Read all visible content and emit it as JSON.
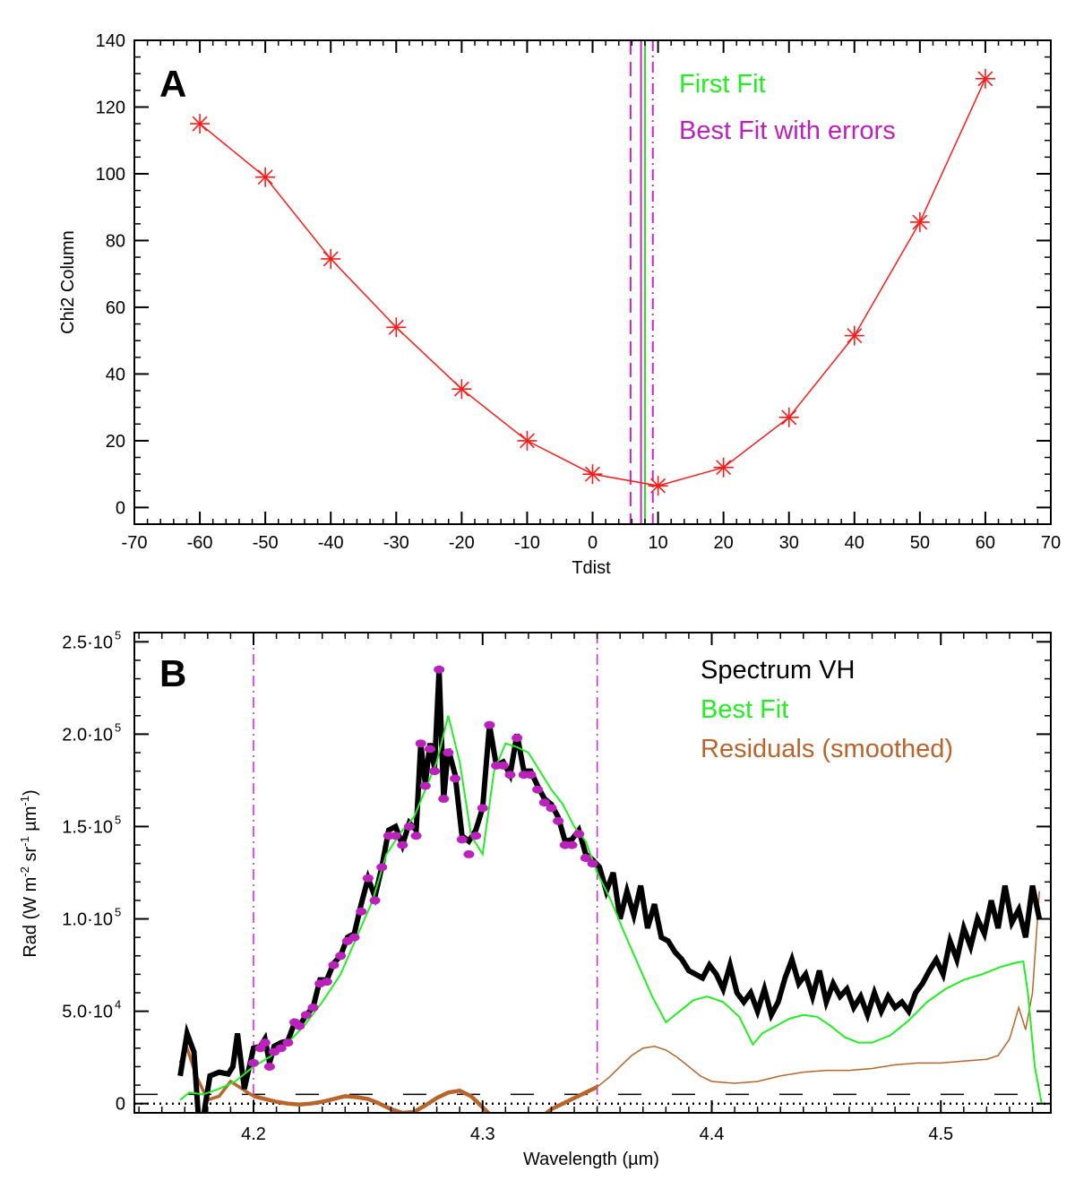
{
  "chart_data": [
    {
      "type": "line",
      "panel_label": "A",
      "xlabel": "Tdist",
      "ylabel": "Chi2 Column",
      "xlim": [
        -70,
        70
      ],
      "ylim": [
        -5,
        140
      ],
      "xticks": [
        -70,
        -60,
        -50,
        -40,
        -30,
        -20,
        -10,
        0,
        10,
        20,
        30,
        40,
        50,
        60,
        70
      ],
      "yticks": [
        0,
        20,
        40,
        60,
        80,
        100,
        120,
        140
      ],
      "series": [
        {
          "color": "#ff1a1a",
          "marker": "asterisk",
          "x": [
            -60,
            -50,
            -40,
            -30,
            -20,
            -10,
            0,
            10,
            20,
            30,
            40,
            50,
            60
          ],
          "y": [
            115,
            99,
            74.5,
            54,
            35.5,
            20,
            10,
            6.5,
            12,
            27,
            51.5,
            85.5,
            128.5
          ]
        }
      ],
      "vlines": [
        {
          "x": 8.0,
          "style": "solid",
          "color": "#22dd22"
        },
        {
          "x": 5.8,
          "style": "dashed",
          "color": "#cc22cc"
        },
        {
          "x": 7.4,
          "style": "solid",
          "color": "#cc22cc"
        },
        {
          "x": 9.2,
          "style": "dashdot",
          "color": "#cc22cc"
        }
      ],
      "legend": [
        {
          "label": "First Fit",
          "color": "#22ee22"
        },
        {
          "label": "Best Fit with errors",
          "color": "#bb22bb"
        }
      ],
      "legend_placement": "top-right",
      "grid": false
    },
    {
      "type": "line",
      "panel_label": "B",
      "xlabel": "Wavelength (µm)",
      "ylabel_parts": [
        "Rad (W m",
        "-2",
        " sr",
        "-1",
        " µm",
        "-1",
        ")"
      ],
      "xlim": [
        4.148,
        4.548
      ],
      "ylim": [
        -5000,
        255000
      ],
      "xticks": [
        4.2,
        4.3,
        4.4,
        4.5
      ],
      "xtick_labels": [
        "4.2",
        "4.3",
        "4.4",
        "4.5"
      ],
      "yticks": [
        0,
        50000,
        100000,
        150000,
        200000,
        250000
      ],
      "ytick_labels": [
        {
          "mant": "0",
          "exp": ""
        },
        {
          "mant": "5.0·10",
          "exp": "4"
        },
        {
          "mant": "1.0·10",
          "exp": "5"
        },
        {
          "mant": "1.5·10",
          "exp": "5"
        },
        {
          "mant": "2.0·10",
          "exp": "5"
        },
        {
          "mant": "2.5·10",
          "exp": "5"
        }
      ],
      "vlines": [
        {
          "x": 4.2,
          "style": "dashdot",
          "color": "#cc22cc"
        },
        {
          "x": 4.35,
          "style": "dashdot",
          "color": "#cc22cc"
        }
      ],
      "hlines": [
        {
          "y": 5000,
          "style": "longdash",
          "color": "#000000"
        },
        {
          "y": 0,
          "style": "dotted",
          "color": "#000000"
        }
      ],
      "series": [
        {
          "name": "Spectrum VH",
          "color": "#000000",
          "width": 6,
          "x": [
            4.168,
            4.171,
            4.174,
            4.176,
            4.178,
            4.181,
            4.185,
            4.189,
            4.191,
            4.193,
            4.196,
            4.2,
            4.203,
            4.205,
            4.207,
            4.209,
            4.212,
            4.215,
            4.218,
            4.22,
            4.223,
            4.226,
            4.229,
            4.232,
            4.235,
            4.238,
            4.241,
            4.244,
            4.247,
            4.25,
            4.253,
            4.256,
            4.259,
            4.262,
            4.265,
            4.268,
            4.271,
            4.273,
            4.275,
            4.277,
            4.279,
            4.281,
            4.283,
            4.285,
            4.288,
            4.291,
            4.294,
            4.297,
            4.3,
            4.303,
            4.306,
            4.309,
            4.312,
            4.315,
            4.318,
            4.321,
            4.324,
            4.327,
            4.33,
            4.333,
            4.336,
            4.339,
            4.342,
            4.345,
            4.348,
            4.351,
            4.354,
            4.357,
            4.36,
            4.363,
            4.366,
            4.369,
            4.372,
            4.375,
            4.378,
            4.381,
            4.384,
            4.387,
            4.39,
            4.393,
            4.396,
            4.399,
            4.402,
            4.405,
            4.408,
            4.411,
            4.414,
            4.417,
            4.42,
            4.423,
            4.426,
            4.429,
            4.432,
            4.435,
            4.438,
            4.441,
            4.444,
            4.447,
            4.45,
            4.453,
            4.456,
            4.459,
            4.462,
            4.465,
            4.468,
            4.471,
            4.474,
            4.477,
            4.48,
            4.483,
            4.486,
            4.489,
            4.492,
            4.495,
            4.498,
            4.501,
            4.504,
            4.507,
            4.51,
            4.513,
            4.516,
            4.519,
            4.522,
            4.525,
            4.528,
            4.531,
            4.534,
            4.537,
            4.54,
            4.543
          ],
          "y": [
            15000,
            38000,
            28000,
            -8000,
            -8000,
            15000,
            17000,
            16000,
            20000,
            38000,
            8000,
            30000,
            31000,
            35000,
            22000,
            31000,
            33000,
            34000,
            44000,
            42000,
            48000,
            52000,
            67000,
            67000,
            76000,
            80000,
            90000,
            92000,
            108000,
            122000,
            112000,
            128000,
            148000,
            150000,
            140000,
            152000,
            148000,
            195000,
            173000,
            195000,
            182000,
            235000,
            165000,
            192000,
            178000,
            145000,
            142000,
            148000,
            160000,
            205000,
            183000,
            185000,
            178000,
            200000,
            180000,
            180000,
            172000,
            165000,
            162000,
            155000,
            142000,
            143000,
            148000,
            135000,
            132000,
            128000,
            115000,
            125000,
            100000,
            115000,
            102000,
            118000,
            95000,
            108000,
            90000,
            88000,
            82000,
            78000,
            72000,
            70000,
            68000,
            75000,
            70000,
            62000,
            75000,
            60000,
            55000,
            60000,
            50000,
            62000,
            48000,
            55000,
            68000,
            78000,
            65000,
            70000,
            58000,
            72000,
            55000,
            65000,
            58000,
            62000,
            52000,
            58000,
            48000,
            60000,
            50000,
            58000,
            52000,
            55000,
            50000,
            60000,
            65000,
            72000,
            78000,
            70000,
            88000,
            78000,
            95000,
            85000,
            100000,
            92000,
            110000,
            95000,
            118000,
            98000,
            105000,
            90000,
            118000,
            100000
          ]
        },
        {
          "name": "Best Fit",
          "color": "#22ee22",
          "width": 2,
          "x": [
            4.168,
            4.172,
            4.178,
            4.185,
            4.192,
            4.2,
            4.208,
            4.215,
            4.222,
            4.23,
            4.238,
            4.245,
            4.252,
            4.258,
            4.265,
            4.27,
            4.275,
            4.28,
            4.285,
            4.29,
            4.295,
            4.3,
            4.305,
            4.31,
            4.315,
            4.32,
            4.325,
            4.33,
            4.335,
            4.34,
            4.345,
            4.35,
            4.356,
            4.362,
            4.368,
            4.374,
            4.38,
            4.386,
            4.392,
            4.398,
            4.405,
            4.412,
            4.418,
            4.422,
            4.428,
            4.434,
            4.44,
            4.446,
            4.452,
            4.458,
            4.464,
            4.47,
            4.478,
            4.486,
            4.494,
            4.502,
            4.51,
            4.518,
            4.526,
            4.532,
            4.536,
            4.538,
            4.541,
            4.544
          ],
          "y": [
            2000,
            6000,
            5000,
            8000,
            12000,
            20000,
            26000,
            33000,
            42000,
            55000,
            70000,
            90000,
            110000,
            135000,
            148000,
            155000,
            170000,
            185000,
            210000,
            185000,
            145000,
            135000,
            180000,
            195000,
            193000,
            190000,
            180000,
            170000,
            162000,
            150000,
            142000,
            125000,
            110000,
            92000,
            75000,
            58000,
            44000,
            50000,
            56000,
            58000,
            55000,
            47000,
            32000,
            38000,
            42000,
            46000,
            48000,
            47000,
            42000,
            36000,
            33000,
            33000,
            37000,
            45000,
            55000,
            62000,
            67000,
            70000,
            74000,
            76000,
            77000,
            60000,
            20000,
            0
          ]
        },
        {
          "name": "Residuals (smoothed)",
          "color": "#b8642a",
          "width": 3,
          "x": [
            4.168,
            4.171,
            4.175,
            4.18,
            4.185,
            4.19,
            4.195,
            4.2,
            4.205,
            4.21,
            4.215,
            4.22,
            4.225,
            4.23,
            4.235,
            4.24,
            4.245,
            4.25,
            4.255,
            4.26,
            4.265,
            4.27,
            4.275,
            4.28,
            4.285,
            4.29,
            4.295,
            4.3,
            4.305,
            4.31,
            4.315,
            4.32,
            4.325,
            4.33,
            4.335,
            4.34,
            4.345,
            4.35,
            4.355,
            4.36,
            4.365,
            4.37,
            4.375,
            4.38,
            4.385,
            4.39,
            4.395,
            4.4,
            4.41,
            4.42,
            4.43,
            4.44,
            4.45,
            4.46,
            4.47,
            4.48,
            4.49,
            4.5,
            4.51,
            4.52,
            4.525,
            4.53,
            4.534,
            4.537,
            4.54,
            4.543
          ],
          "y": [
            22000,
            30000,
            15000,
            2000,
            4000,
            12000,
            8000,
            4000,
            2500,
            1000,
            0,
            -500,
            0,
            1000,
            2500,
            4000,
            3500,
            2500,
            0,
            -3000,
            -5000,
            -4500,
            -1000,
            3000,
            6000,
            7000,
            4000,
            -2000,
            -8000,
            -12000,
            -13000,
            -12000,
            -8000,
            -3000,
            0,
            3000,
            6000,
            9000,
            14000,
            20000,
            26000,
            30000,
            31000,
            29000,
            25000,
            20000,
            15000,
            12000,
            11000,
            12000,
            15000,
            17000,
            18000,
            18000,
            19000,
            21000,
            22000,
            22000,
            23000,
            24000,
            26000,
            35000,
            52000,
            40000,
            60000,
            115000
          ]
        }
      ],
      "fit_points": {
        "color": "#bb22bb",
        "x": [
          4.2,
          4.203,
          4.205,
          4.207,
          4.209,
          4.212,
          4.215,
          4.218,
          4.22,
          4.223,
          4.226,
          4.229,
          4.232,
          4.235,
          4.238,
          4.241,
          4.244,
          4.247,
          4.25,
          4.253,
          4.256,
          4.259,
          4.262,
          4.265,
          4.268,
          4.271,
          4.273,
          4.275,
          4.277,
          4.279,
          4.281,
          4.283,
          4.285,
          4.288,
          4.291,
          4.294,
          4.297,
          4.3,
          4.303,
          4.306,
          4.309,
          4.312,
          4.315,
          4.318,
          4.321,
          4.324,
          4.327,
          4.33,
          4.333,
          4.336,
          4.339,
          4.342,
          4.345,
          4.348
        ],
        "y": [
          22000,
          30000,
          33000,
          20000,
          28000,
          30000,
          33000,
          44000,
          42000,
          48000,
          52000,
          65000,
          66000,
          75000,
          80000,
          88000,
          90000,
          104000,
          122000,
          110000,
          128000,
          145000,
          145000,
          140000,
          150000,
          145000,
          195000,
          172000,
          192000,
          180000,
          235000,
          165000,
          190000,
          176000,
          143000,
          135000,
          145000,
          160000,
          205000,
          183000,
          183000,
          178000,
          198000,
          178000,
          178000,
          170000,
          163000,
          160000,
          153000,
          140000,
          140000,
          146000,
          133000,
          130000
        ]
      },
      "legend": [
        {
          "label": "Spectrum VH",
          "color": "#000000"
        },
        {
          "label": "Best Fit",
          "color": "#22ee22"
        },
        {
          "label": "Residuals (smoothed)",
          "color": "#b8642a"
        }
      ],
      "legend_placement": "top-right",
      "grid": false
    }
  ]
}
